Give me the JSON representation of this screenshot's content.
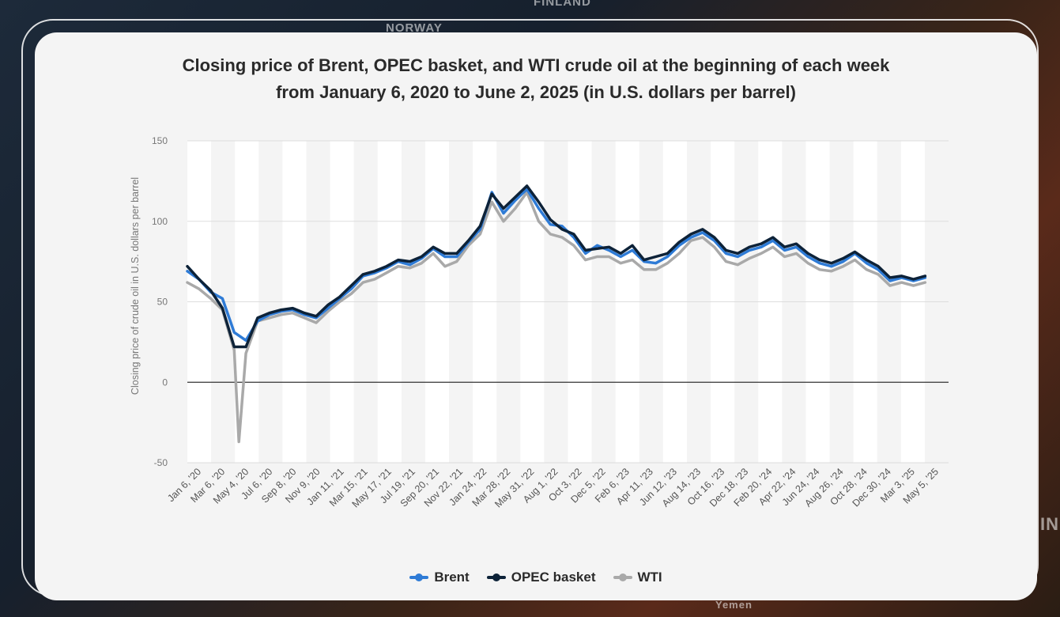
{
  "background_labels": [
    "FINLAND",
    "NORWAY",
    "IN",
    "Yemen"
  ],
  "chart_data": {
    "type": "line",
    "title": "Closing price of Brent, OPEC basket, and WTI crude oil at the beginning of each week",
    "subtitle": "from January 6, 2020 to June 2, 2025 (in U.S. dollars per barrel)",
    "xlabel": "",
    "ylabel": "Closing price of crude oil in U.S. dollars per barrel",
    "ylim": [
      -50,
      150
    ],
    "yticks": [
      150,
      100,
      50,
      0,
      -50
    ],
    "grid": true,
    "legend_position": "bottom",
    "categories": [
      "Jan 6, '20",
      "Mar 6, '20",
      "May 4, '20",
      "Jul 6, '20",
      "Sep 8, '20",
      "Nov 9, '20",
      "Jan 11, '21",
      "Mar 15, '21",
      "May 17, '21",
      "Jul 19, '21",
      "Sep 20, '21",
      "Nov 22, '21",
      "Jan 24, '22",
      "Mar 28, '22",
      "May 31, '22",
      "Aug 1, '22",
      "Oct 3, '22",
      "Dec 5, '22",
      "Feb 6, '23",
      "Apr 11, '23",
      "Jun 12, '23",
      "Aug 14, '23",
      "Oct 16, '23",
      "Dec 18, '23",
      "Feb 20, '24",
      "Apr 22, '24",
      "Jun 24, '24",
      "Aug 26, '24",
      "Oct 28, '24",
      "Dec 30, '24",
      "Mar 3, '25",
      "May 5, '25"
    ],
    "x_span_months": 65,
    "series": [
      {
        "name": "Brent",
        "color": "#2e7bd6",
        "points": [
          [
            0,
            69
          ],
          [
            1,
            64
          ],
          [
            2,
            56
          ],
          [
            3,
            52
          ],
          [
            4,
            31
          ],
          [
            5,
            26
          ],
          [
            6,
            38
          ],
          [
            7,
            42
          ],
          [
            8,
            44
          ],
          [
            9,
            45
          ],
          [
            10,
            42
          ],
          [
            11,
            40
          ],
          [
            12,
            46
          ],
          [
            13,
            52
          ],
          [
            14,
            58
          ],
          [
            15,
            66
          ],
          [
            16,
            68
          ],
          [
            17,
            71
          ],
          [
            18,
            75
          ],
          [
            19,
            73
          ],
          [
            20,
            77
          ],
          [
            21,
            83
          ],
          [
            22,
            78
          ],
          [
            23,
            78
          ],
          [
            24,
            87
          ],
          [
            25,
            95
          ],
          [
            26,
            118
          ],
          [
            27,
            105
          ],
          [
            28,
            113
          ],
          [
            29,
            120
          ],
          [
            30,
            108
          ],
          [
            31,
            98
          ],
          [
            32,
            97
          ],
          [
            33,
            90
          ],
          [
            34,
            80
          ],
          [
            35,
            85
          ],
          [
            36,
            82
          ],
          [
            37,
            78
          ],
          [
            38,
            82
          ],
          [
            39,
            75
          ],
          [
            40,
            74
          ],
          [
            41,
            78
          ],
          [
            42,
            85
          ],
          [
            43,
            90
          ],
          [
            44,
            93
          ],
          [
            45,
            88
          ],
          [
            46,
            80
          ],
          [
            47,
            78
          ],
          [
            48,
            82
          ],
          [
            49,
            84
          ],
          [
            50,
            88
          ],
          [
            51,
            82
          ],
          [
            52,
            84
          ],
          [
            53,
            78
          ],
          [
            54,
            74
          ],
          [
            55,
            72
          ],
          [
            56,
            75
          ],
          [
            57,
            80
          ],
          [
            58,
            74
          ],
          [
            59,
            70
          ],
          [
            60,
            63
          ],
          [
            61,
            65
          ],
          [
            62,
            63
          ],
          [
            63,
            65
          ]
        ]
      },
      {
        "name": "OPEC basket",
        "color": "#0d2238",
        "points": [
          [
            0,
            72
          ],
          [
            1,
            64
          ],
          [
            2,
            57
          ],
          [
            3,
            46
          ],
          [
            4,
            22
          ],
          [
            5,
            22
          ],
          [
            6,
            40
          ],
          [
            7,
            43
          ],
          [
            8,
            45
          ],
          [
            9,
            46
          ],
          [
            10,
            43
          ],
          [
            11,
            41
          ],
          [
            12,
            48
          ],
          [
            13,
            53
          ],
          [
            14,
            60
          ],
          [
            15,
            67
          ],
          [
            16,
            69
          ],
          [
            17,
            72
          ],
          [
            18,
            76
          ],
          [
            19,
            75
          ],
          [
            20,
            78
          ],
          [
            21,
            84
          ],
          [
            22,
            80
          ],
          [
            23,
            80
          ],
          [
            24,
            88
          ],
          [
            25,
            97
          ],
          [
            26,
            117
          ],
          [
            27,
            108
          ],
          [
            28,
            115
          ],
          [
            29,
            122
          ],
          [
            30,
            112
          ],
          [
            31,
            101
          ],
          [
            32,
            95
          ],
          [
            33,
            92
          ],
          [
            34,
            82
          ],
          [
            35,
            83
          ],
          [
            36,
            84
          ],
          [
            37,
            80
          ],
          [
            38,
            85
          ],
          [
            39,
            76
          ],
          [
            40,
            78
          ],
          [
            41,
            80
          ],
          [
            42,
            87
          ],
          [
            43,
            92
          ],
          [
            44,
            95
          ],
          [
            45,
            90
          ],
          [
            46,
            82
          ],
          [
            47,
            80
          ],
          [
            48,
            84
          ],
          [
            49,
            86
          ],
          [
            50,
            90
          ],
          [
            51,
            84
          ],
          [
            52,
            86
          ],
          [
            53,
            80
          ],
          [
            54,
            76
          ],
          [
            55,
            74
          ],
          [
            56,
            77
          ],
          [
            57,
            81
          ],
          [
            58,
            76
          ],
          [
            59,
            72
          ],
          [
            60,
            65
          ],
          [
            61,
            66
          ],
          [
            62,
            64
          ],
          [
            63,
            66
          ]
        ]
      },
      {
        "name": "WTI",
        "color": "#a9a9a9",
        "points": [
          [
            0,
            62
          ],
          [
            1,
            58
          ],
          [
            2,
            52
          ],
          [
            3,
            45
          ],
          [
            4,
            20
          ],
          [
            4.4,
            -37
          ],
          [
            5,
            18
          ],
          [
            6,
            38
          ],
          [
            7,
            40
          ],
          [
            8,
            42
          ],
          [
            9,
            43
          ],
          [
            10,
            40
          ],
          [
            11,
            37
          ],
          [
            12,
            44
          ],
          [
            13,
            50
          ],
          [
            14,
            55
          ],
          [
            15,
            62
          ],
          [
            16,
            64
          ],
          [
            17,
            68
          ],
          [
            18,
            72
          ],
          [
            19,
            71
          ],
          [
            20,
            74
          ],
          [
            21,
            80
          ],
          [
            22,
            72
          ],
          [
            23,
            75
          ],
          [
            24,
            85
          ],
          [
            25,
            92
          ],
          [
            26,
            112
          ],
          [
            27,
            100
          ],
          [
            28,
            108
          ],
          [
            29,
            118
          ],
          [
            30,
            100
          ],
          [
            31,
            92
          ],
          [
            32,
            90
          ],
          [
            33,
            85
          ],
          [
            34,
            76
          ],
          [
            35,
            78
          ],
          [
            36,
            78
          ],
          [
            37,
            74
          ],
          [
            38,
            76
          ],
          [
            39,
            70
          ],
          [
            40,
            70
          ],
          [
            41,
            74
          ],
          [
            42,
            80
          ],
          [
            43,
            88
          ],
          [
            44,
            90
          ],
          [
            45,
            84
          ],
          [
            46,
            75
          ],
          [
            47,
            73
          ],
          [
            48,
            77
          ],
          [
            49,
            80
          ],
          [
            50,
            84
          ],
          [
            51,
            78
          ],
          [
            52,
            80
          ],
          [
            53,
            74
          ],
          [
            54,
            70
          ],
          [
            55,
            69
          ],
          [
            56,
            72
          ],
          [
            57,
            76
          ],
          [
            58,
            70
          ],
          [
            59,
            67
          ],
          [
            60,
            60
          ],
          [
            61,
            62
          ],
          [
            62,
            60
          ],
          [
            63,
            62
          ]
        ]
      }
    ]
  }
}
